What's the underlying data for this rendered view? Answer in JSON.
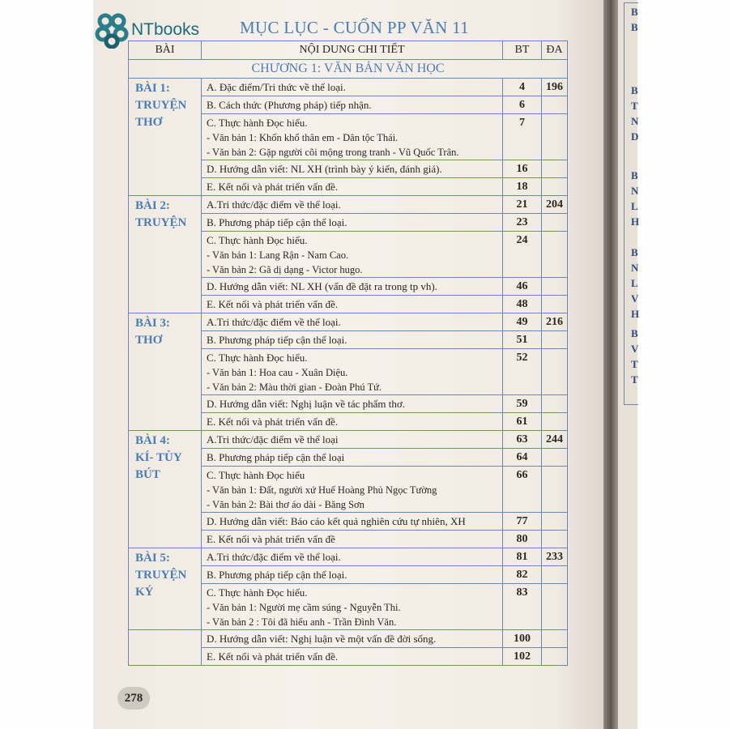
{
  "logo": {
    "text": "NTbooks",
    "brand_color": "#1d6b7a"
  },
  "title": "MỤC LỤC - CUỐN PP VĂN 11",
  "table": {
    "headers": [
      "BÀI",
      "NỘI DUNG CHI TIẾT",
      "BT",
      "ĐA"
    ],
    "chapter": "CHƯƠNG 1: VĂN BẢN VĂN HỌC",
    "lessons": [
      {
        "label": [
          "BÀI 1:",
          "TRUYỆN",
          "THƠ"
        ],
        "da": "196",
        "rows": [
          {
            "text": "A. Đặc điểm/Tri thức về thể loại.",
            "bt": "4"
          },
          {
            "text": "B. Cách thức (Phương pháp) tiếp nhận.",
            "bt": "6"
          },
          {
            "text": "C. Thực hành Đọc hiểu.",
            "subs": [
              "- Văn bản 1: Khốn khổ thân em - Dân tộc Thái.",
              "- Văn bản 2: Gặp người cõi mộng trong tranh - Vũ Quốc Trân."
            ],
            "bt": "7"
          },
          {
            "text": "D. Hướng dẫn viết: NL XH (trình bày ý kiến, đánh giá).",
            "bt": "16"
          },
          {
            "text": "E. Kết nối và phát triển vấn đề.",
            "bt": "18"
          }
        ]
      },
      {
        "label": [
          "BÀI 2:",
          "TRUYỆN"
        ],
        "da": "204",
        "rows": [
          {
            "text": "A.Tri thức/đặc điểm về thể loại.",
            "bt": "21"
          },
          {
            "text": "B. Phương pháp tiếp cận thể loại.",
            "bt": "23"
          },
          {
            "text": "C. Thực hành Đọc hiểu.",
            "subs": [
              "- Văn bản 1: Lang Rận - Nam Cao.",
              "- Văn bản 2: Gã dị dạng - Victor hugo."
            ],
            "bt": "24"
          },
          {
            "text": "D. Hướng dẫn viết: NL XH (vấn đề đặt ra trong tp vh).",
            "bt": "46"
          },
          {
            "text": "E. Kết nối và phát triển vấn đề.",
            "bt": "48"
          }
        ]
      },
      {
        "label": [
          "BÀI 3:",
          "THƠ"
        ],
        "da": "216",
        "rows": [
          {
            "text": "A.Tri thức/đặc điểm về thể loại.",
            "bt": "49"
          },
          {
            "text": "B. Phương pháp tiếp cận thể loại.",
            "bt": "51"
          },
          {
            "text": "C. Thực hành Đọc hiểu.",
            "subs": [
              "- Văn bản 1: Hoa cau - Xuân Diệu.",
              "- Văn bản 2: Màu thời gian - Đoàn Phú Tứ."
            ],
            "bt": "52"
          },
          {
            "text": "D. Hướng dẫn viết: Nghị luận về tác phẩm thơ.",
            "bt": "59"
          },
          {
            "text": "E. Kết nối và phát triển vấn đề.",
            "bt": "61"
          }
        ]
      },
      {
        "label": [
          "BÀI 4:",
          "KÍ- TÙY",
          "BÚT"
        ],
        "da": "244",
        "rows": [
          {
            "text": "A.Tri thức/đặc điểm về thể loại",
            "bt": "63"
          },
          {
            "text": "B. Phương pháp tiếp cận thể loại",
            "bt": "64"
          },
          {
            "text": "C. Thực hành Đọc hiểu",
            "subs": [
              "- Văn bản 1: Đất, người xứ Huế Hoàng Phủ Ngọc Tường",
              "- Văn bản 2: Bài thơ áo dài - Băng Sơn"
            ],
            "bt": "66"
          },
          {
            "text": "D. Hướng dẫn viết: Báo cáo kết quả nghiên cứu tự nhiên, XH",
            "bt": "77"
          },
          {
            "text": "E. Kết nối và phát triển vấn đề",
            "bt": "80"
          }
        ]
      },
      {
        "label": [
          "BÀI 5:",
          "TRUYỆN",
          "KÝ"
        ],
        "da": "233",
        "rows": [
          {
            "text": "A.Tri thức/đặc điểm về thể loại.",
            "bt": "81"
          },
          {
            "text": "B. Phương pháp tiếp cận thể loại.",
            "bt": "82"
          },
          {
            "text": "C. Thực hành Đọc hiểu.",
            "subs": [
              "- Văn bản 1: Người mẹ cầm súng - Nguyễn Thi.",
              "- Văn bản 2 : Tôi đã hiểu anh - Trần Đình Văn."
            ],
            "bt": "83"
          },
          {
            "text": "D. Hướng dẫn viết: Nghị luận về một vấn đề đời sống.",
            "bt": "100"
          },
          {
            "text": "E. Kết nối và phát triển vấn đề.",
            "bt": "102"
          }
        ]
      }
    ]
  },
  "page_number": "278",
  "right_page_letters": [
    [
      "B",
      "B"
    ],
    [
      "B",
      "T",
      "N",
      "D"
    ],
    [
      "B",
      "N",
      "L",
      "H"
    ],
    [
      "B",
      "N",
      "L",
      "V",
      "H"
    ],
    [
      "B",
      "V",
      "T",
      "T"
    ]
  ],
  "colors": {
    "accent_blue": "#4a7db6",
    "border_blue": "#6a86b5"
  }
}
